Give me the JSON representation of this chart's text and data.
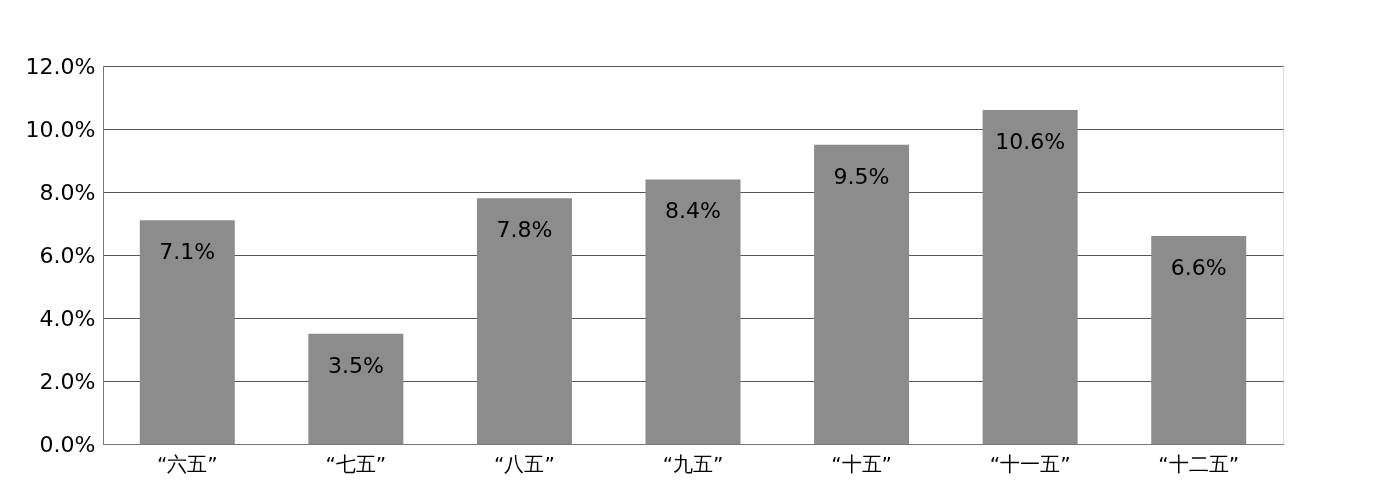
{
  "chart_data": {
    "type": "bar",
    "categories": [
      "“六五”",
      "“七五”",
      "“八五”",
      "“九五”",
      "“十五”",
      "“十一五”",
      "“十二五”"
    ],
    "values": [
      7.1,
      3.5,
      7.8,
      8.4,
      9.5,
      10.6,
      6.6
    ],
    "value_labels": [
      "7.1%",
      "3.5%",
      "7.8%",
      "8.4%",
      "9.5%",
      "10.6%",
      "6.6%"
    ],
    "color": "#8c8c8c",
    "ylim": [
      0,
      12
    ],
    "yticks": [
      {
        "value": 0,
        "label": "0.0%"
      },
      {
        "value": 2,
        "label": "2.0%"
      },
      {
        "value": 4,
        "label": "4.0%"
      },
      {
        "value": 6,
        "label": "6.0%"
      },
      {
        "value": 8,
        "label": "8.0%"
      },
      {
        "value": 10,
        "label": "10.0%"
      },
      {
        "value": 12,
        "label": "12.0%"
      }
    ],
    "grid": "y"
  }
}
